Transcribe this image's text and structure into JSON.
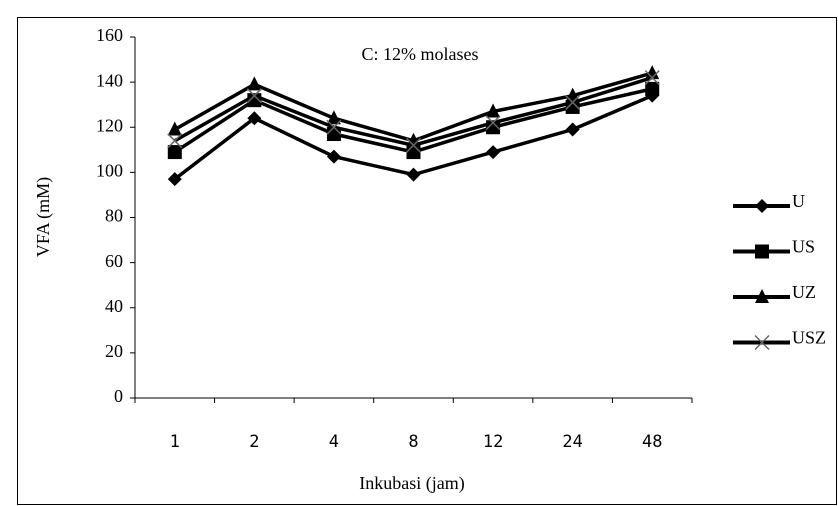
{
  "chart_data": {
    "type": "line",
    "title": "C: 12% molases",
    "xlabel": "Inkubasi (jam)",
    "ylabel": "VFA (mM)",
    "categories": [
      "1",
      "2",
      "4",
      "8",
      "12",
      "24",
      "48"
    ],
    "ylim": [
      0,
      160
    ],
    "yticks": [
      0,
      20,
      40,
      60,
      80,
      100,
      120,
      140,
      160
    ],
    "legend": "right",
    "series": [
      {
        "name": "U",
        "color": "#000000",
        "marker": "diamond",
        "values": [
          97,
          124,
          107,
          99,
          109,
          119,
          134
        ]
      },
      {
        "name": "US",
        "color": "#000000",
        "marker": "square",
        "values": [
          109,
          132,
          117,
          109,
          120,
          129,
          137
        ]
      },
      {
        "name": "UZ",
        "color": "#000000",
        "marker": "triangle",
        "values": [
          119,
          139,
          124,
          114,
          127,
          134,
          144
        ]
      },
      {
        "name": "USZ",
        "color": "#000000",
        "marker": "x",
        "values": [
          114,
          134,
          120,
          112,
          122,
          131,
          142
        ]
      }
    ]
  }
}
